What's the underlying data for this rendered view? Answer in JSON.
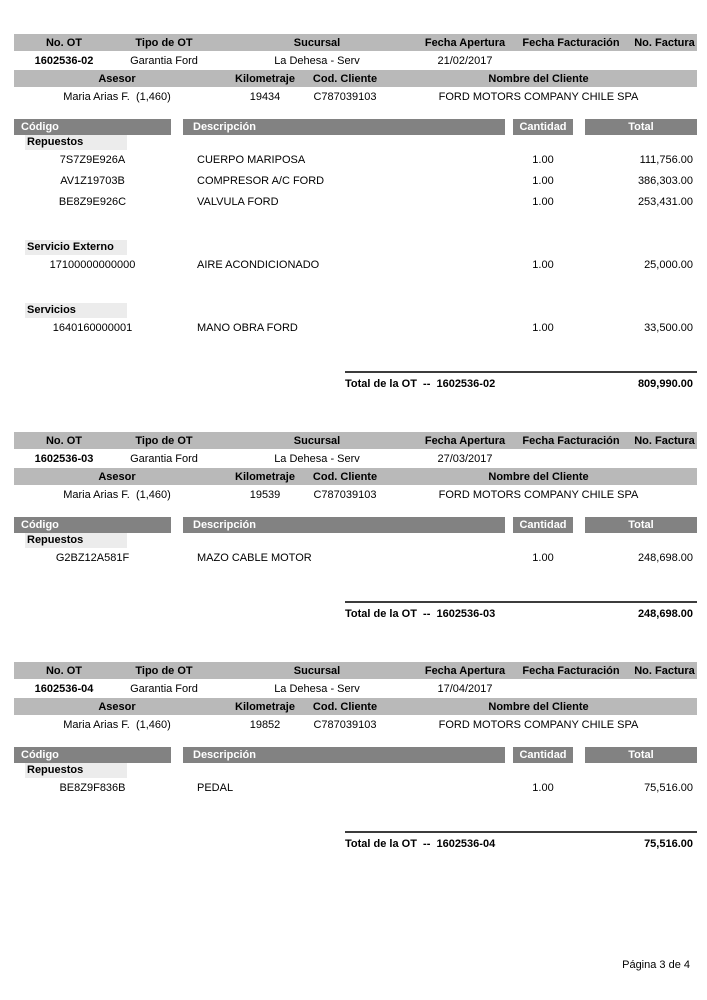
{
  "labels": {
    "info_header1": [
      "No. OT",
      "Tipo de OT",
      "Sucursal",
      "Fecha Apertura",
      "Fecha Facturación",
      "No. Factura"
    ],
    "info_header2": [
      "Asesor",
      "Kilometraje",
      "Cod. Cliente",
      "Nombre del Cliente"
    ],
    "items_header": [
      "Código",
      "Descripción",
      "Cantidad",
      "Total"
    ]
  },
  "sections": [
    {
      "no_ot": "1602536-02",
      "tipo_ot": "Garantia Ford",
      "sucursal": "La Dehesa - Serv",
      "fecha_apertura": "21/02/2017",
      "fecha_facturacion": "",
      "no_factura": "",
      "asesor": "Maria Arias F.  (1,460)",
      "kilometraje": "19434",
      "cod_cliente": "C787039103",
      "nombre_cliente": "FORD MOTORS COMPANY CHILE SPA",
      "groups": [
        {
          "name": "Repuestos",
          "rows": [
            {
              "code": "7S7Z9E926A",
              "desc": "CUERPO MARIPOSA",
              "qty": "1.00",
              "total": "111,756.00"
            },
            {
              "code": "AV1Z19703B",
              "desc": "COMPRESOR A/C FORD",
              "qty": "1.00",
              "total": "386,303.00"
            },
            {
              "code": "BE8Z9E926C",
              "desc": "VALVULA FORD",
              "qty": "1.00",
              "total": "253,431.00"
            }
          ]
        },
        {
          "name": "Servicio Externo",
          "rows": [
            {
              "code": "17100000000000",
              "desc": "AIRE ACONDICIONADO",
              "qty": "1.00",
              "total": "25,000.00"
            }
          ]
        },
        {
          "name": "Servicios",
          "rows": [
            {
              "code": "1640160000001",
              "desc": "MANO OBRA FORD",
              "qty": "1.00",
              "total": "33,500.00"
            }
          ]
        }
      ],
      "total_label": "Total de la OT  --  1602536-02",
      "total_value": "809,990.00"
    },
    {
      "no_ot": "1602536-03",
      "tipo_ot": "Garantia Ford",
      "sucursal": "La Dehesa - Serv",
      "fecha_apertura": "27/03/2017",
      "fecha_facturacion": "",
      "no_factura": "",
      "asesor": "Maria Arias F.  (1,460)",
      "kilometraje": "19539",
      "cod_cliente": "C787039103",
      "nombre_cliente": "FORD MOTORS COMPANY CHILE SPA",
      "groups": [
        {
          "name": "Repuestos",
          "rows": [
            {
              "code": "G2BZ12A581F",
              "desc": "MAZO CABLE MOTOR",
              "qty": "1.00",
              "total": "248,698.00"
            }
          ]
        }
      ],
      "total_label": "Total de la OT  --  1602536-03",
      "total_value": "248,698.00"
    },
    {
      "no_ot": "1602536-04",
      "tipo_ot": "Garantia Ford",
      "sucursal": "La Dehesa - Serv",
      "fecha_apertura": "17/04/2017",
      "fecha_facturacion": "",
      "no_factura": "",
      "asesor": "Maria Arias F.  (1,460)",
      "kilometraje": "19852",
      "cod_cliente": "C787039103",
      "nombre_cliente": "FORD MOTORS COMPANY CHILE SPA",
      "groups": [
        {
          "name": "Repuestos",
          "rows": [
            {
              "code": "BE8Z9F836B",
              "desc": "PEDAL",
              "qty": "1.00",
              "total": "75,516.00"
            }
          ]
        }
      ],
      "total_label": "Total de la OT  --  1602536-04",
      "total_value": "75,516.00"
    }
  ],
  "footer": {
    "page_indicator": "Página 3 de 4"
  }
}
